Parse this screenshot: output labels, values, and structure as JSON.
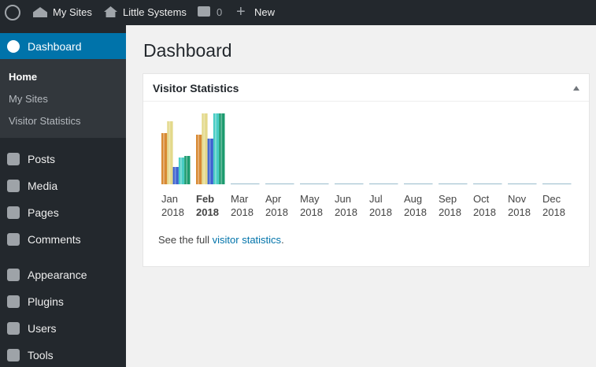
{
  "admin_bar": {
    "my_sites": "My Sites",
    "site": "Little Systems",
    "comments": "0",
    "new": "New"
  },
  "sidebar": {
    "active": "Dashboard",
    "submenu": [
      "Home",
      "My Sites",
      "Visitor Statistics"
    ],
    "menu": [
      "Posts",
      "Media",
      "Pages",
      "Comments",
      "Appearance",
      "Plugins",
      "Users",
      "Tools"
    ]
  },
  "page": {
    "title": "Dashboard"
  },
  "widget": {
    "title": "Visitor Statistics",
    "footer": {
      "before": "See the full ",
      "link": "visitor statistics",
      "after": "."
    },
    "chart": {
      "type": "bar",
      "categories": [
        "Jan",
        "Feb",
        "Mar",
        "Apr",
        "May",
        "Jun",
        "Jul",
        "Aug",
        "Sep",
        "Oct",
        "Nov",
        "Dec"
      ],
      "years": [
        "2018",
        "2018",
        "2018",
        "2018",
        "2018",
        "2018",
        "2018",
        "2018",
        "2018",
        "2018",
        "2018",
        "2018"
      ],
      "highlight_category": "Feb",
      "series": [
        {
          "color": "#d88a34",
          "values": [
            65,
            63,
            0,
            0,
            0,
            0,
            0,
            0,
            0,
            0,
            0,
            0
          ]
        },
        {
          "color": "#e3d98a",
          "values": [
            80,
            90,
            0,
            0,
            0,
            0,
            0,
            0,
            0,
            0,
            0,
            0
          ]
        },
        {
          "color": "#3c62d0",
          "values": [
            22,
            58,
            0,
            0,
            0,
            0,
            0,
            0,
            0,
            0,
            0,
            0
          ]
        },
        {
          "color": "#48cdc4",
          "values": [
            34,
            90,
            0,
            0,
            0,
            0,
            0,
            0,
            0,
            0,
            0,
            0
          ]
        },
        {
          "color": "#1b9a6e",
          "values": [
            36,
            90,
            0,
            0,
            0,
            0,
            0,
            0,
            0,
            0,
            0,
            0
          ]
        }
      ]
    }
  }
}
